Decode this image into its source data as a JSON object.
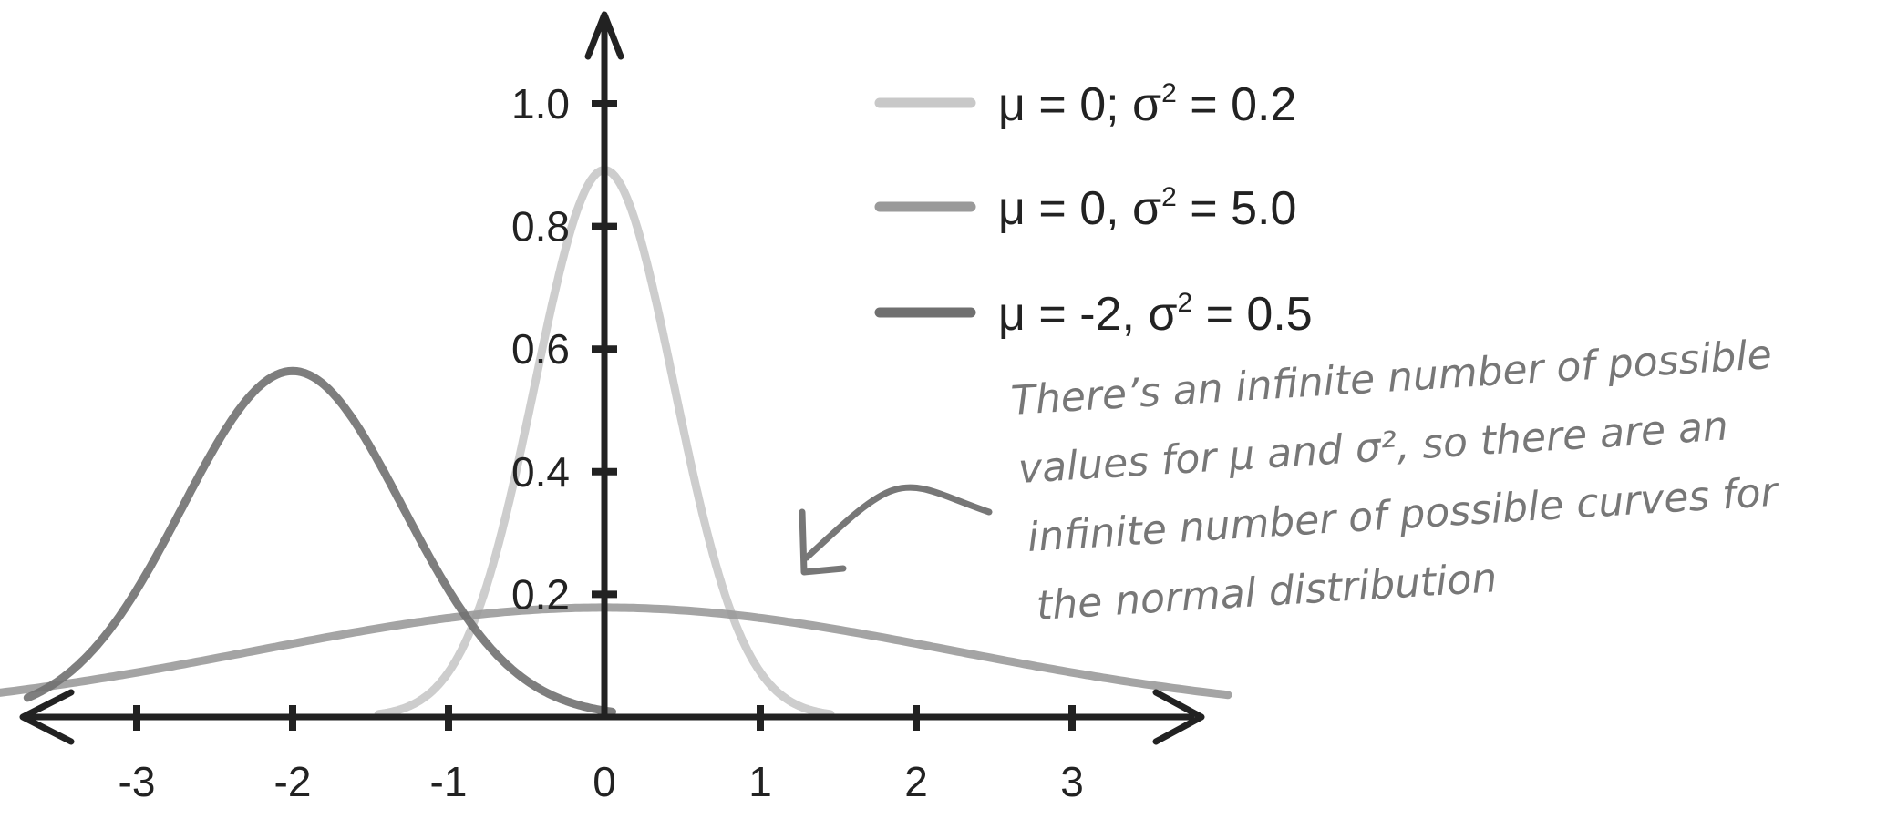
{
  "chart_data": {
    "type": "line",
    "xlim": [
      -3.7,
      3.7
    ],
    "ylim": [
      0,
      1.1
    ],
    "x_ticks": [
      -3,
      -2,
      -1,
      0,
      1,
      2,
      3
    ],
    "x_tick_labels": [
      "-3",
      "-2",
      "-1",
      "0",
      "1",
      "2",
      "3"
    ],
    "y_ticks": [
      0.2,
      0.4,
      0.6,
      0.8,
      1.0
    ],
    "y_tick_labels": [
      "0.2",
      "0.4",
      "0.6",
      "0.8",
      "1.0"
    ],
    "grid": false,
    "legend_position": "top-right",
    "series": [
      {
        "name": "μ = 0; σ² = 0.2",
        "mu": 0,
        "variance": 0.2,
        "color": "#c8c8c8",
        "x": [
          -1.5,
          -1.0,
          -0.5,
          0,
          0.5,
          1.0,
          1.5
        ],
        "y": [
          0.004,
          0.073,
          0.477,
          0.892,
          0.477,
          0.073,
          0.004
        ]
      },
      {
        "name": "μ = 0, σ² = 5.0",
        "mu": 0,
        "variance": 5.0,
        "color": "#9a9a9a",
        "x": [
          -4,
          -3,
          -2,
          -1,
          0,
          1,
          2,
          3,
          4
        ],
        "y": [
          0.036,
          0.072,
          0.119,
          0.161,
          0.178,
          0.161,
          0.119,
          0.072,
          0.036
        ]
      },
      {
        "name": "μ = -2, σ² = 0.5",
        "mu": -2,
        "variance": 0.5,
        "color": "#707070",
        "x": [
          -3.7,
          -3,
          -2.5,
          -2,
          -1.5,
          -1,
          -0.5,
          0
        ],
        "y": [
          0.031,
          0.207,
          0.439,
          0.564,
          0.439,
          0.207,
          0.059,
          0.01
        ]
      }
    ],
    "legend": {
      "entries": [
        {
          "prefix": "μ = 0; σ",
          "sup": "2",
          "suffix": " = 0.2"
        },
        {
          "prefix": "μ = 0, σ",
          "sup": "2",
          "suffix": " = 5.0"
        },
        {
          "prefix": "μ = -2, σ",
          "sup": "2",
          "suffix": " = 0.5"
        }
      ]
    },
    "annotation": {
      "lines": [
        "There’s an infinite number of possible",
        "values for μ and σ², so there are an",
        "infinite number of possible curves for",
        "the normal distribution"
      ]
    }
  }
}
